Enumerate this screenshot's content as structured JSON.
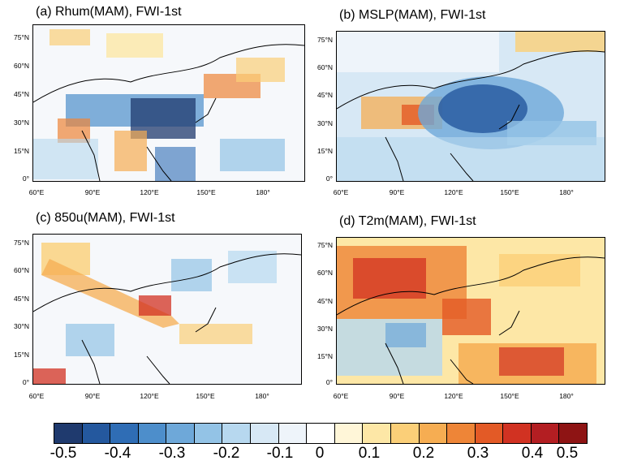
{
  "panels": [
    {
      "title": "(a) Rhum(MAM), FWI-1st"
    },
    {
      "title": "(b) MSLP(MAM), FWI-1st"
    },
    {
      "title": "(c) 850u(MAM), FWI-1st"
    },
    {
      "title": "(d) T2m(MAM), FWI-1st"
    }
  ],
  "lat_ticks": [
    "75°N",
    "60°N",
    "45°N",
    "30°N",
    "15°N",
    "0°"
  ],
  "lon_ticks": [
    "60°E",
    "90°E",
    "120°E",
    "150°E",
    "180°"
  ],
  "colorbar": {
    "colors": [
      "#1f3a6e",
      "#24589e",
      "#2f6db5",
      "#4d8ecb",
      "#6ea8d9",
      "#93c3e6",
      "#b7d8ef",
      "#d7e8f5",
      "#eef4fa",
      "#ffffff",
      "#fff6d8",
      "#fde7a6",
      "#fbcf78",
      "#f6ad52",
      "#ee8537",
      "#e35a26",
      "#d13222",
      "#b31e22",
      "#8e1414"
    ],
    "labels": [
      "-0.5",
      "-0.4",
      "-0.3",
      "-0.2",
      "-0.1",
      "0",
      "0.1",
      "0.2",
      "0.3",
      "0.4",
      "0.5"
    ]
  }
}
